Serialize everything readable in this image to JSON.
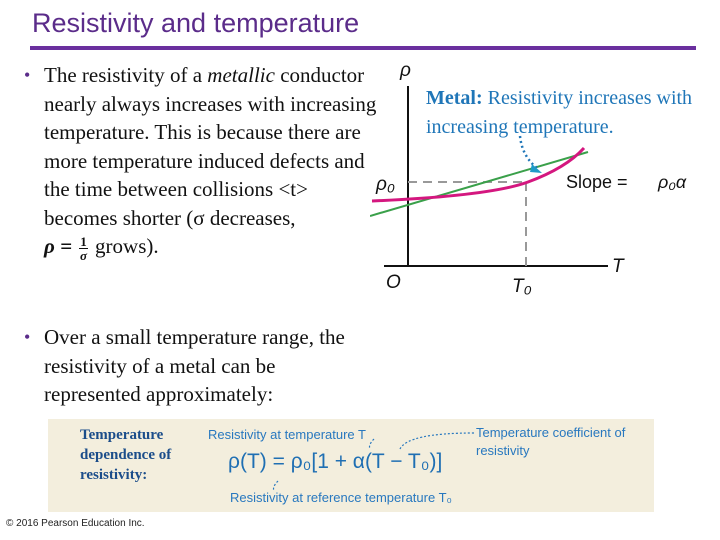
{
  "title": "Resistivity and temperature",
  "bullet1": {
    "lead": "The resistivity of a ",
    "em": "metallic",
    "rest": " conductor nearly always increases with increasing temperature. This is because there are more temperature induced defects and the time between collisions <t> becomes shorter (σ decreases,",
    "rho_eq": "ρ =",
    "frac_num": "1",
    "frac_den": "σ",
    "tail": " grows)."
  },
  "bullet2": {
    "text": "Over a small temperature range, the resistivity of a metal can be represented approximately:"
  },
  "graph": {
    "y_axis_label": "ρ",
    "x_axis_label": "T",
    "origin_label": "O",
    "rho0_label": "ρ₀",
    "t0_label": "T₀",
    "slope_label": "Slope =",
    "slope_value": "ρ₀α",
    "note_bold": "Metal:",
    "note_text": " Resistivity increases with increasing temperature.",
    "colors": {
      "curve": "#d4177f",
      "tangent": "#3aa04a",
      "axes": "#111111",
      "dashed": "#999999",
      "note": "#1f76b8"
    }
  },
  "equation": {
    "label": "Temperature dependence of resistivity:",
    "annot_top": "Resistivity at temperature T",
    "annot_right": "Temperature coefficient of resistivity",
    "annot_bottom": "Resistivity at reference temperature T₀",
    "formula": "ρ(T) = ρ₀[1 + α(T − T₀)]"
  },
  "footer": "© 2016 Pearson Education Inc."
}
